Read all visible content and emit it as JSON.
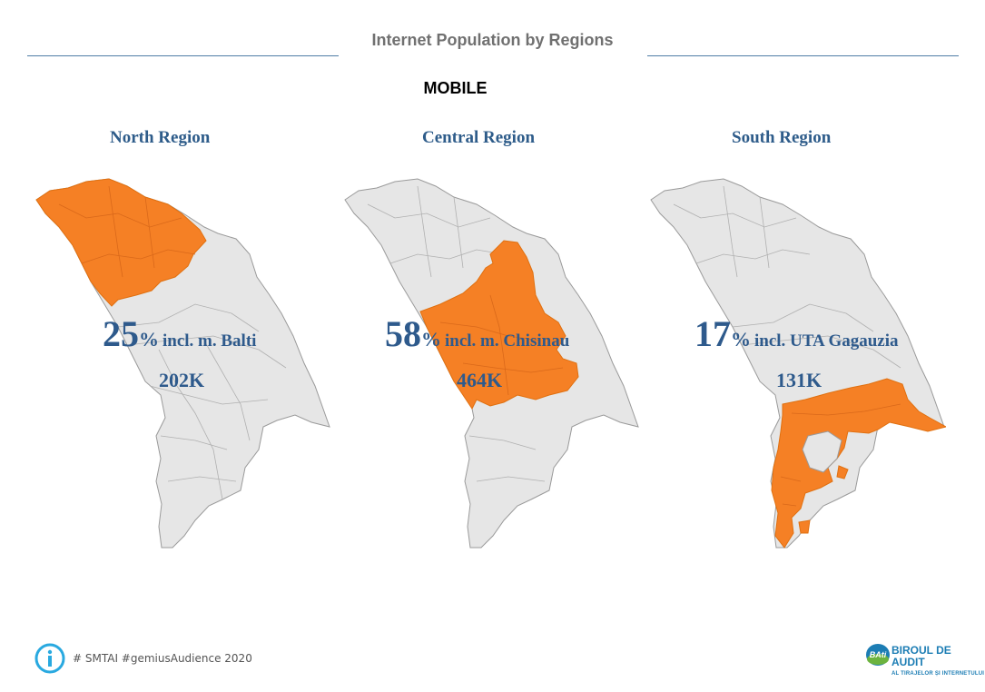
{
  "header": {
    "title": "Internet Population by Regions",
    "section": "MOBILE"
  },
  "colors": {
    "highlight": "#F58025",
    "base": "#E6E6E6",
    "border": "#999999",
    "text_blue": "#2E5A8C"
  },
  "regions": [
    {
      "name": "North Region",
      "percent": "25",
      "percent_sign": "%",
      "description": "incl. m. Balti",
      "count": "202K"
    },
    {
      "name": "Central Region",
      "percent": "58",
      "percent_sign": "%",
      "description": "incl. m. Chisinau",
      "count": "464K"
    },
    {
      "name": "South Region",
      "percent": "17",
      "percent_sign": "%",
      "description": "incl. UTA Gagauzia",
      "count": "131K"
    }
  ],
  "footer": {
    "source": "# SMTAI #gemiusAudience 2020",
    "info_icon": "info-icon",
    "logo": {
      "badge": "BAti",
      "line1": "BIROUL DE AUDIT",
      "line2": "AL TIRAJELOR ȘI INTERNETULUI"
    }
  }
}
